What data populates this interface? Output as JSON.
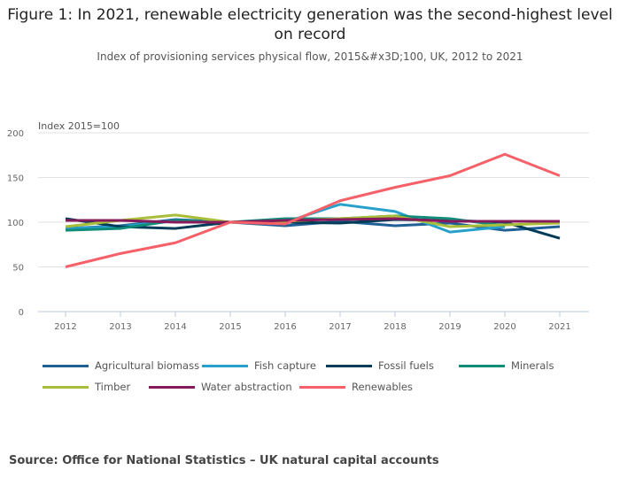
{
  "title": "Figure 1: In 2021, renewable electricity generation was the second-highest level on record",
  "subtitle": "Index of provisioning services physical flow, 2015&#x3D;100, UK, 2012 to 2021",
  "source": "Source: Office for National Statistics – UK natural capital accounts",
  "chart_data": {
    "type": "line",
    "ylabel": "Index 2015=100",
    "ylim": [
      0,
      200
    ],
    "yticks": [
      "0",
      "50",
      "100",
      "150",
      "200"
    ],
    "x": [
      "2012",
      "2013",
      "2014",
      "2015",
      "2016",
      "2017",
      "2018",
      "2019",
      "2020",
      "2021"
    ],
    "grid": true,
    "legend": "bottom",
    "series": [
      {
        "name": "Agricultural biomass",
        "color": "#206095",
        "values": [
          93,
          96,
          103,
          100,
          96,
          101,
          96,
          99,
          91,
          95
        ]
      },
      {
        "name": "Fish capture",
        "color": "#27a0cc",
        "values": [
          93,
          95,
          102,
          100,
          100,
          120,
          112,
          89,
          95,
          null
        ]
      },
      {
        "name": "Fossil fuels",
        "color": "#003c57",
        "values": [
          104,
          95,
          93,
          100,
          100,
          99,
          103,
          102,
          100,
          82
        ]
      },
      {
        "name": "Minerals",
        "color": "#118c7b",
        "values": [
          91,
          93,
          102,
          100,
          104,
          104,
          107,
          104,
          96,
          null
        ]
      },
      {
        "name": "Timber",
        "color": "#a8bd3a",
        "values": [
          95,
          102,
          108,
          100,
          101,
          104,
          107,
          95,
          97,
          99
        ]
      },
      {
        "name": "Water abstraction",
        "color": "#871a5b",
        "values": [
          102,
          102,
          100,
          100,
          102,
          103,
          104,
          101,
          101,
          101
        ]
      },
      {
        "name": "Renewables",
        "color": "#f66068",
        "values": [
          50,
          65,
          77,
          100,
          98,
          124,
          139,
          152,
          176,
          152
        ]
      }
    ]
  }
}
